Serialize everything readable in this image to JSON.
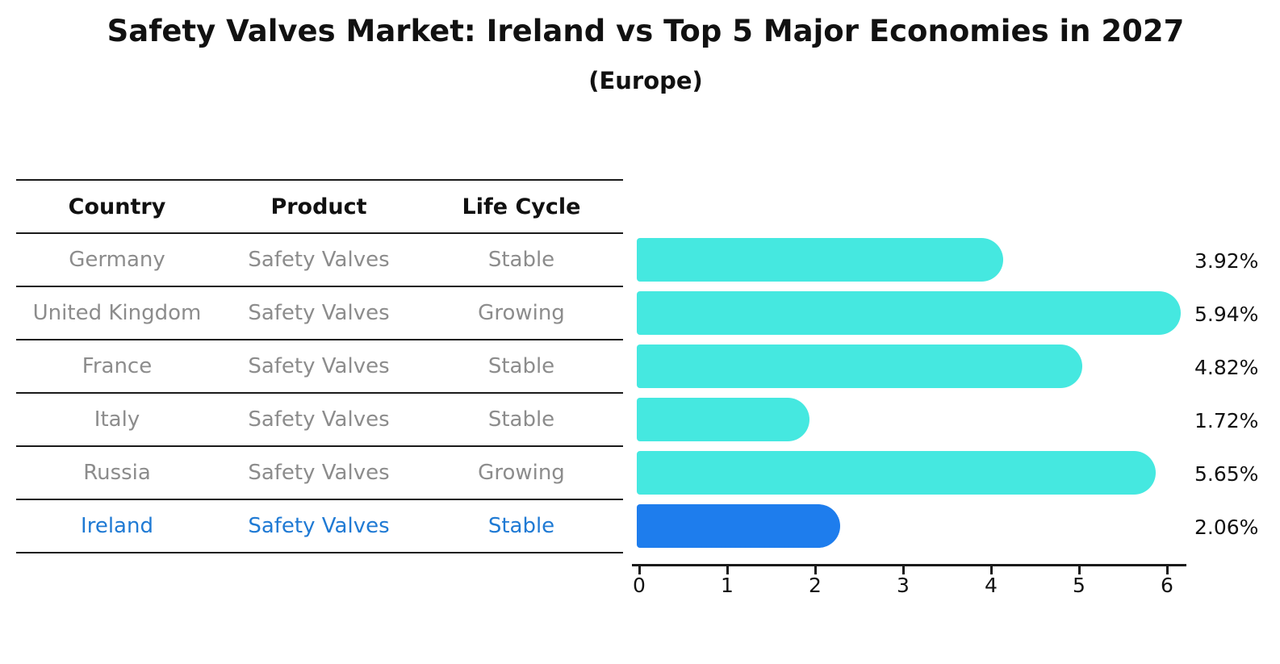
{
  "title": "Safety Valves Market: Ireland vs Top 5 Major Economies in 2027",
  "subtitle": "(Europe)",
  "table": {
    "headers": [
      "Country",
      "Product",
      "Life Cycle"
    ],
    "rows": [
      {
        "country": "Germany",
        "product": "Safety Valves",
        "life_cycle": "Stable",
        "highlighted": false
      },
      {
        "country": "United Kingdom",
        "product": "Safety Valves",
        "life_cycle": "Growing",
        "highlighted": false
      },
      {
        "country": "France",
        "product": "Safety Valves",
        "life_cycle": "Stable",
        "highlighted": false
      },
      {
        "country": "Italy",
        "product": "Safety Valves",
        "life_cycle": "Stable",
        "highlighted": false
      },
      {
        "country": "Russia",
        "product": "Safety Valves",
        "life_cycle": "Growing",
        "highlighted": false
      },
      {
        "country": "Ireland",
        "product": "Safety Valves",
        "life_cycle": "Stable",
        "highlighted": true
      }
    ]
  },
  "chart_data": {
    "type": "bar",
    "orientation": "horizontal",
    "title": "Safety Valves Market: Ireland vs Top 5 Major Economies in 2027 (Europe)",
    "categories": [
      "Germany",
      "United Kingdom",
      "France",
      "Italy",
      "Russia",
      "Ireland"
    ],
    "values": [
      3.92,
      5.94,
      4.82,
      1.72,
      5.65,
      2.06
    ],
    "value_labels": [
      "3.92%",
      "5.94%",
      "4.82%",
      "1.72%",
      "5.65%",
      "2.06%"
    ],
    "unit_suffix": "%",
    "x_tick_labels": [
      "0",
      "1",
      "2",
      "3",
      "4",
      "5",
      "6"
    ],
    "x_ticks": [
      0,
      1,
      2,
      3,
      4,
      5,
      6
    ],
    "xlim": [
      0,
      6.3
    ],
    "grid": false,
    "legend": "none",
    "highlight_category": "Ireland",
    "colors": {
      "bar": "#45e8e0",
      "highlight_bar": "#1e7ded",
      "highlight_bar_edge": "#1e7ded",
      "highlight_text": "#1f7ad4",
      "table_text": "#8c8c8c",
      "header_text": "#111111",
      "axis": "#1a1a1a"
    }
  }
}
